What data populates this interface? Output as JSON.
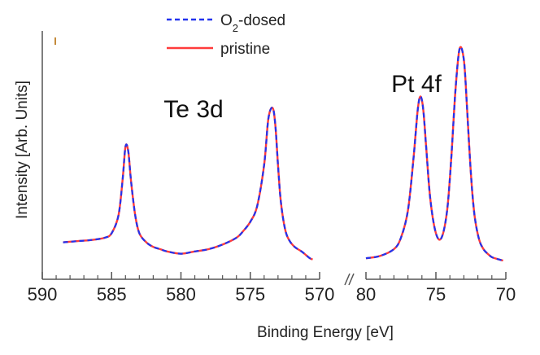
{
  "chart_data": {
    "type": "line",
    "xlabel": "Binding Energy [eV]",
    "ylabel": "Intensity [Arb. Units]",
    "legend": {
      "placement": "top",
      "entries": [
        {
          "name_prefix": "O",
          "name_sub": "2",
          "name_suffix": "-dosed",
          "color": "#2233ee",
          "style": "dashed"
        },
        {
          "name_prefix": "pristine",
          "name_sub": "",
          "name_suffix": "",
          "color": "#ff3b3b",
          "style": "solid"
        }
      ]
    },
    "panels": [
      {
        "label": "Te 3d",
        "xlim": [
          590,
          570
        ],
        "ylim": [
          0,
          1
        ],
        "ticks": [
          590,
          585,
          580,
          575,
          570
        ],
        "tick_labels": [
          "590",
          "585",
          "580",
          "575",
          "570"
        ],
        "x": [
          588.5,
          587.5,
          586.5,
          585.5,
          585.0,
          584.5,
          584.2,
          584.0,
          583.8,
          583.6,
          583.3,
          583.0,
          582.5,
          582.0,
          581.5,
          581.0,
          580.0,
          579.0,
          578.0,
          577.0,
          576.0,
          575.5,
          575.0,
          574.5,
          574.0,
          573.7,
          573.4,
          573.2,
          573.0,
          572.8,
          572.5,
          572.2,
          571.8,
          571.3,
          571.0,
          570.7,
          570.5
        ],
        "series": [
          {
            "name": "O2-dosed",
            "values": [
              0.08,
              0.085,
              0.09,
              0.1,
              0.12,
              0.2,
              0.36,
              0.5,
              0.48,
              0.35,
              0.2,
              0.12,
              0.08,
              0.06,
              0.05,
              0.04,
              0.03,
              0.04,
              0.05,
              0.07,
              0.1,
              0.13,
              0.17,
              0.24,
              0.42,
              0.62,
              0.67,
              0.6,
              0.42,
              0.26,
              0.14,
              0.09,
              0.06,
              0.04,
              0.025,
              0.01,
              0.005
            ]
          },
          {
            "name": "pristine",
            "values": [
              0.08,
              0.085,
              0.09,
              0.1,
              0.12,
              0.2,
              0.36,
              0.5,
              0.48,
              0.35,
              0.2,
              0.12,
              0.08,
              0.06,
              0.05,
              0.04,
              0.03,
              0.04,
              0.05,
              0.07,
              0.1,
              0.13,
              0.17,
              0.24,
              0.42,
              0.62,
              0.67,
              0.6,
              0.42,
              0.26,
              0.14,
              0.09,
              0.06,
              0.04,
              0.025,
              0.01,
              0.005
            ]
          }
        ]
      },
      {
        "label": "Pt 4f",
        "xlim": [
          80,
          70
        ],
        "ylim": [
          0,
          1
        ],
        "ticks": [
          80,
          75,
          70
        ],
        "tick_labels": [
          "80",
          "75",
          "70"
        ],
        "x": [
          80.0,
          79.0,
          78.0,
          77.5,
          77.0,
          76.6,
          76.3,
          76.1,
          75.9,
          75.7,
          75.4,
          75.0,
          74.6,
          74.2,
          73.9,
          73.6,
          73.3,
          73.0,
          72.8,
          72.6,
          72.4,
          72.2,
          71.9,
          71.6,
          71.3,
          71.0,
          70.5,
          70.2
        ],
        "series": [
          {
            "name": "O2-dosed",
            "values": [
              0.01,
              0.02,
              0.05,
              0.1,
              0.22,
              0.45,
              0.66,
              0.72,
              0.66,
              0.5,
              0.27,
              0.12,
              0.1,
              0.22,
              0.45,
              0.75,
              0.93,
              0.88,
              0.7,
              0.48,
              0.3,
              0.18,
              0.09,
              0.05,
              0.03,
              0.015,
              0.005,
              0.0
            ]
          },
          {
            "name": "pristine",
            "values": [
              0.01,
              0.02,
              0.05,
              0.1,
              0.22,
              0.45,
              0.66,
              0.72,
              0.66,
              0.5,
              0.27,
              0.12,
              0.1,
              0.22,
              0.45,
              0.75,
              0.93,
              0.88,
              0.7,
              0.48,
              0.3,
              0.18,
              0.09,
              0.05,
              0.03,
              0.015,
              0.005,
              0.0
            ]
          }
        ]
      }
    ]
  }
}
